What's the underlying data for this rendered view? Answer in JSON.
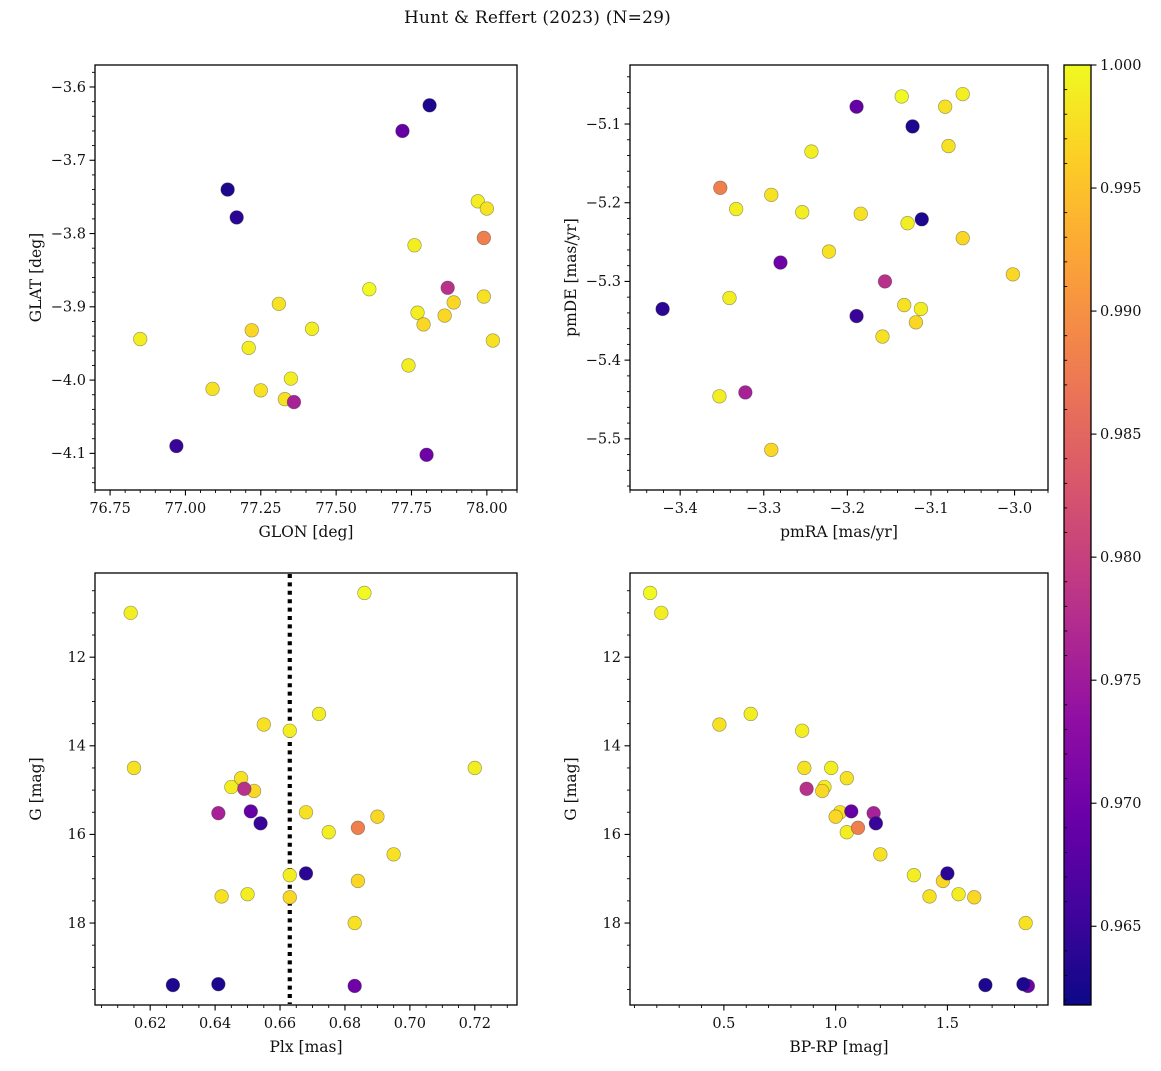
{
  "title": "Hunt & Reffert (2023) (N=29)",
  "chart_data": {
    "type": "scatter",
    "title": "Hunt & Reffert (2023) (N=29)",
    "n_stars": 29,
    "colormap": "plasma",
    "colorbar": {
      "vmin": 0.9618,
      "vmax": 1.0,
      "ticks": [
        1.0,
        0.995,
        0.99,
        0.985,
        0.98,
        0.975,
        0.97,
        0.965
      ],
      "tick_labels": [
        "1.000",
        "0.995",
        "0.990",
        "0.985",
        "0.980",
        "0.975",
        "0.970",
        "0.965"
      ],
      "minor_step": 0.001,
      "orientation": "vertical",
      "position": "right"
    },
    "star_fields": [
      "glon",
      "glat",
      "pmra",
      "pmde",
      "plx",
      "g",
      "bprp",
      "membership_prob"
    ],
    "stars": [
      [
        76.85,
        -3.944,
        -3.062,
        -5.062,
        0.614,
        11.0,
        0.22,
        0.999
      ],
      [
        77.61,
        -3.876,
        -3.135,
        -5.065,
        0.686,
        10.55,
        0.17,
        1.0
      ],
      [
        77.42,
        -3.93,
        -3.243,
        -5.135,
        0.672,
        13.28,
        0.62,
        0.999
      ],
      [
        77.31,
        -3.896,
        -3.079,
        -5.128,
        0.655,
        13.52,
        0.48,
        0.998
      ],
      [
        77.76,
        -3.816,
        -3.333,
        -5.208,
        0.663,
        13.66,
        0.85,
        0.999
      ],
      [
        78.02,
        -3.946,
        -3.291,
        -5.19,
        0.615,
        14.5,
        0.86,
        0.998
      ],
      [
        77.97,
        -3.756,
        -3.254,
        -5.212,
        0.72,
        14.5,
        0.98,
        0.999
      ],
      [
        78.0,
        -3.766,
        -3.184,
        -5.214,
        0.648,
        14.73,
        1.05,
        0.998
      ],
      [
        77.21,
        -3.956,
        -3.128,
        -5.226,
        0.645,
        14.93,
        0.95,
        0.999
      ],
      [
        77.87,
        -3.874,
        -3.155,
        -5.3,
        0.649,
        14.97,
        0.87,
        0.978
      ],
      [
        77.22,
        -3.932,
        -3.062,
        -5.245,
        0.652,
        15.02,
        0.94,
        0.997
      ],
      [
        77.36,
        -4.03,
        -3.322,
        -5.441,
        0.641,
        15.52,
        1.17,
        0.976
      ],
      [
        77.72,
        -3.66,
        -3.189,
        -5.078,
        0.651,
        15.48,
        1.07,
        0.969
      ],
      [
        76.97,
        -4.09,
        -3.189,
        -5.344,
        0.654,
        15.75,
        1.18,
        0.965
      ],
      [
        77.25,
        -4.014,
        -3.222,
        -5.262,
        0.668,
        15.5,
        1.02,
        0.998
      ],
      [
        77.99,
        -3.806,
        -3.352,
        -5.181,
        0.684,
        15.85,
        1.1,
        0.988
      ],
      [
        77.89,
        -3.894,
        -3.002,
        -5.291,
        0.69,
        15.6,
        1.0,
        0.997
      ],
      [
        77.74,
        -3.98,
        -3.341,
        -5.321,
        0.675,
        15.95,
        1.05,
        0.999
      ],
      [
        77.09,
        -4.012,
        -3.132,
        -5.33,
        0.695,
        16.45,
        1.2,
        0.998
      ],
      [
        77.17,
        -3.778,
        -3.421,
        -5.335,
        0.668,
        16.88,
        1.5,
        0.964
      ],
      [
        77.77,
        -3.908,
        -3.112,
        -5.335,
        0.663,
        16.92,
        1.35,
        0.999
      ],
      [
        77.79,
        -3.924,
        -3.118,
        -5.352,
        0.684,
        17.05,
        1.48,
        0.997
      ],
      [
        77.33,
        -4.026,
        -3.158,
        -5.37,
        0.642,
        17.4,
        1.42,
        0.998
      ],
      [
        77.35,
        -3.998,
        -3.353,
        -5.446,
        0.65,
        17.35,
        1.55,
        0.999
      ],
      [
        77.86,
        -3.912,
        -3.291,
        -5.514,
        0.663,
        17.42,
        1.62,
        0.997
      ],
      [
        77.99,
        -3.886,
        -3.083,
        -5.078,
        0.683,
        18.0,
        1.85,
        0.998
      ],
      [
        77.81,
        -3.625,
        -3.122,
        -5.103,
        0.627,
        19.4,
        1.67,
        0.963
      ],
      [
        77.14,
        -3.74,
        -3.111,
        -5.221,
        0.641,
        19.38,
        1.84,
        0.963
      ],
      [
        77.8,
        -4.102,
        -3.28,
        -5.276,
        0.683,
        19.42,
        1.86,
        0.97
      ]
    ],
    "panels": [
      {
        "id": "glon-glat",
        "xlabel": "GLON [deg]",
        "ylabel": "GLAT [deg]",
        "x": "glon",
        "y": "glat",
        "xlim": [
          76.7,
          78.1
        ],
        "ylim": [
          -4.15,
          -3.57
        ],
        "xticks": [
          76.75,
          77.0,
          77.25,
          77.5,
          77.75,
          78.0
        ],
        "xtick_labels": [
          "76.75",
          "77.00",
          "77.25",
          "77.50",
          "77.75",
          "78.00"
        ],
        "yticks": [
          -3.6,
          -3.7,
          -3.8,
          -3.9,
          -4.0,
          -4.1
        ],
        "ytick_labels": [
          "−3.6",
          "−3.7",
          "−3.8",
          "−3.9",
          "−4.0",
          "−4.1"
        ],
        "x_minor_step": 0.05,
        "y_minor_step": 0.02
      },
      {
        "id": "pm",
        "xlabel": "pmRA [mas/yr]",
        "ylabel": "pmDE [mas/yr]",
        "x": "pmra",
        "y": "pmde",
        "xlim": [
          -3.46,
          -2.96
        ],
        "ylim": [
          -5.565,
          -5.025
        ],
        "xticks": [
          -3.4,
          -3.3,
          -3.2,
          -3.1,
          -3.0
        ],
        "xtick_labels": [
          "−3.4",
          "−3.3",
          "−3.2",
          "−3.1",
          "−3.0"
        ],
        "yticks": [
          -5.1,
          -5.2,
          -5.3,
          -5.4,
          -5.5
        ],
        "ytick_labels": [
          "−5.1",
          "−5.2",
          "−5.3",
          "−5.4",
          "−5.5"
        ],
        "x_minor_step": 0.02,
        "y_minor_step": 0.02
      },
      {
        "id": "plx-g",
        "xlabel": "Plx [mas]",
        "ylabel": "G [mag]",
        "x": "plx",
        "y": "g",
        "xlim": [
          0.603,
          0.733
        ],
        "ylim": [
          19.85,
          10.1
        ],
        "xticks": [
          0.62,
          0.64,
          0.66,
          0.68,
          0.7,
          0.72
        ],
        "xtick_labels": [
          "0.62",
          "0.64",
          "0.66",
          "0.68",
          "0.70",
          "0.72"
        ],
        "yticks": [
          12,
          14,
          16,
          18
        ],
        "ytick_labels": [
          "12",
          "14",
          "16",
          "18"
        ],
        "x_minor_step": 0.005,
        "y_minor_step": 0.5,
        "vline": {
          "x": 0.663,
          "style": "dotted",
          "color": "#000000"
        }
      },
      {
        "id": "cmd",
        "xlabel": "BP-RP [mag]",
        "ylabel": "G [mag]",
        "x": "bprp",
        "y": "g",
        "xlim": [
          0.08,
          1.95
        ],
        "ylim": [
          19.85,
          10.1
        ],
        "xticks": [
          0.5,
          1.0,
          1.5
        ],
        "xtick_labels": [
          "0.5",
          "1.0",
          "1.5"
        ],
        "yticks": [
          12,
          14,
          16,
          18
        ],
        "ytick_labels": [
          "12",
          "14",
          "16",
          "18"
        ],
        "x_minor_step": 0.1,
        "y_minor_step": 0.5
      }
    ]
  }
}
